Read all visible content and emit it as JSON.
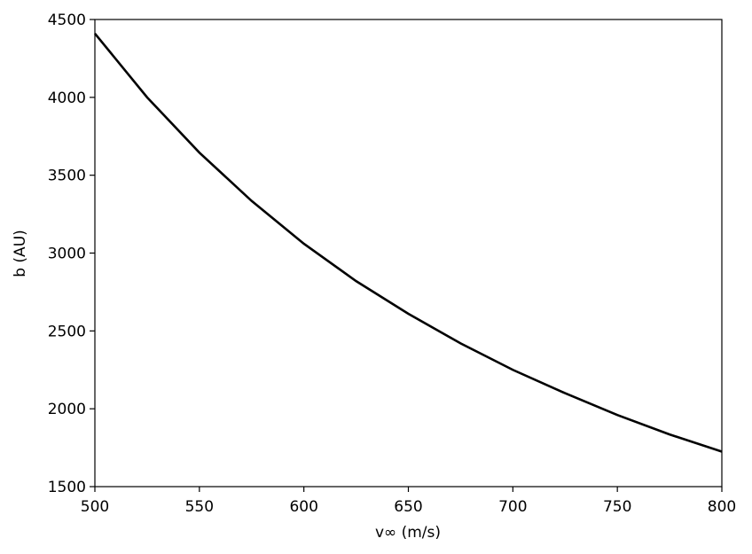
{
  "chart_data": {
    "type": "line",
    "xlabel": "v∞ (m/s)",
    "ylabel": "b (AU)",
    "x": [
      500,
      525,
      550,
      575,
      600,
      625,
      650,
      675,
      700,
      725,
      750,
      775,
      800
    ],
    "series": [
      {
        "name": "b",
        "color": "#000000",
        "values": [
          4410,
          4000,
          3645,
          3335,
          3060,
          2820,
          2610,
          2420,
          2250,
          2100,
          1960,
          1835,
          1725
        ]
      }
    ],
    "xlim": [
      500,
      800
    ],
    "xticks": [
      500,
      550,
      600,
      650,
      700,
      750,
      800
    ],
    "ylim": [
      1500,
      4500
    ],
    "yticks": [
      1500,
      2000,
      2500,
      3000,
      3500,
      4000,
      4500
    ],
    "grid": false
  }
}
